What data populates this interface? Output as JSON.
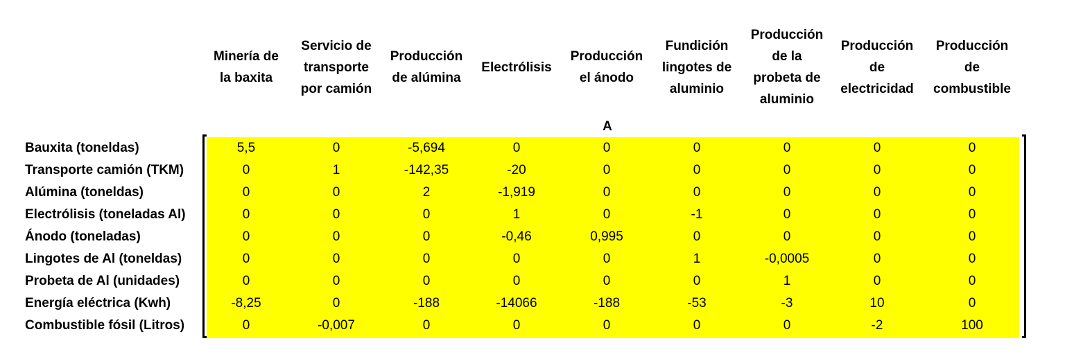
{
  "matrix_label": "A",
  "columns": [
    "Minería de\nla baxita",
    "Servicio de\ntransporte\npor camión",
    "Producción\nde alúmina",
    "Electrólisis",
    "Producción\nel ánodo",
    "Fundición\nlingotes de\naluminio",
    "Producción\nde la\nprobeta de\naluminio",
    "Producción\nde\nelectricidad",
    "Producción\nde\ncombustible"
  ],
  "rows": [
    {
      "label": "Bauxita (toneldas)",
      "values": [
        "5,5",
        "0",
        "-5,694",
        "0",
        "0",
        "0",
        "0",
        "0",
        "0"
      ]
    },
    {
      "label": "Transporte camión (TKM)",
      "values": [
        "0",
        "1",
        "-142,35",
        "-20",
        "0",
        "0",
        "0",
        "0",
        "0"
      ]
    },
    {
      "label": "Alúmina (toneldas)",
      "values": [
        "0",
        "0",
        "2",
        "-1,919",
        "0",
        "0",
        "0",
        "0",
        "0"
      ]
    },
    {
      "label": "Electrólisis (toneladas Al)",
      "values": [
        "0",
        "0",
        "0",
        "1",
        "0",
        "-1",
        "0",
        "0",
        "0"
      ]
    },
    {
      "label": "Ánodo (toneladas)",
      "values": [
        "0",
        "0",
        "0",
        "-0,46",
        "0,995",
        "0",
        "0",
        "0",
        "0"
      ]
    },
    {
      "label": "Lingotes de Al (toneldas)",
      "values": [
        "0",
        "0",
        "0",
        "0",
        "0",
        "1",
        "-0,0005",
        "0",
        "0"
      ]
    },
    {
      "label": "Probeta de Al (unidades)",
      "values": [
        "0",
        "0",
        "0",
        "0",
        "0",
        "0",
        "1",
        "0",
        "0"
      ]
    },
    {
      "label": "Energía eléctrica (Kwh)",
      "values": [
        "-8,25",
        "0",
        "-188",
        "-14066",
        "-188",
        "-53",
        "-3",
        "10",
        "0"
      ]
    },
    {
      "label": "Combustible fósil (Litros)",
      "values": [
        "0",
        "-0,007",
        "0",
        "0",
        "0",
        "0",
        "0",
        "-2",
        "100"
      ]
    }
  ],
  "colors": {
    "matrix_fill": "#ffff00",
    "text": "#000000"
  }
}
